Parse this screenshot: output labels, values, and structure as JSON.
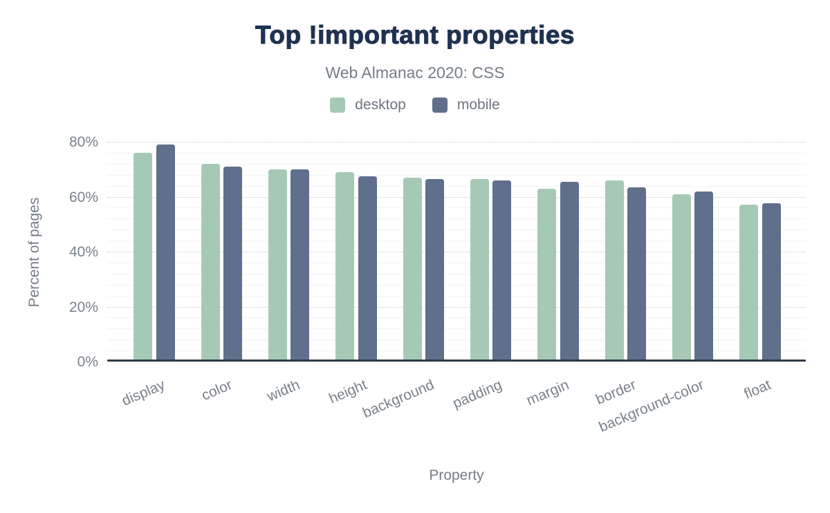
{
  "header": {
    "title": "Top !important properties",
    "subtitle": "Web Almanac 2020: CSS"
  },
  "chart_data": {
    "type": "bar",
    "title": "Top !important properties",
    "subtitle": "Web Almanac 2020: CSS",
    "categories": [
      "display",
      "color",
      "width",
      "height",
      "background",
      "padding",
      "margin",
      "border",
      "background-color",
      "float"
    ],
    "series": [
      {
        "name": "desktop",
        "color": "#a6c9b6",
        "values": [
          76,
          72,
          70,
          69,
          67,
          66.5,
          63,
          66,
          61,
          57
        ]
      },
      {
        "name": "mobile",
        "color": "#606f8b",
        "values": [
          79,
          71,
          70,
          67.5,
          66.5,
          66,
          65.5,
          63.5,
          62,
          57.5
        ]
      }
    ],
    "xlabel": "Property",
    "ylabel": "Percent of pages",
    "ylim": [
      0,
      80
    ],
    "yticks": [
      "0%",
      "20%",
      "40%",
      "60%",
      "80%"
    ],
    "ytick_values": [
      0,
      20,
      40,
      60,
      80
    ],
    "grid": "major dotted every 20%, minor solid every 4%",
    "legend_position": "top-center",
    "colors": {
      "title": "#1f3251",
      "subtitle_text": "#757d87",
      "tick_text": "#7a818a",
      "axis_line": "#2e3947",
      "major_gridline": "#c3c8cd",
      "minor_gridline": "#f2f3f5",
      "background": "#ffffff"
    }
  }
}
